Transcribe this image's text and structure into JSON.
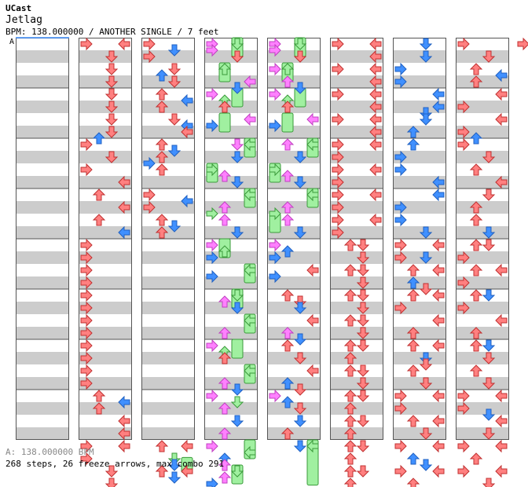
{
  "header": {
    "artist": "UCast",
    "title": "Jetlag",
    "info": "BPM: 138.000000 / ANOTHER SINGLE / 7 feet"
  },
  "section_marker": "A",
  "footer": {
    "bpm_line": "A: 138.000000 BPM",
    "stats_line": "268 steps, 26 freeze arrows, max combo 291"
  },
  "colors": {
    "quarter": "#ff8080",
    "eighth": "#4090ff",
    "sixteenth": "#ff80ff",
    "freeze": "#a0f0a0",
    "stripe": "#cccccc"
  },
  "notes": [
    [],
    [
      [
        0,
        0,
        "q"
      ],
      [
        0,
        3,
        "q"
      ],
      [
        1,
        2,
        "q"
      ],
      [
        2,
        2,
        "q"
      ],
      [
        3,
        2,
        "q"
      ],
      [
        4,
        2,
        "q"
      ],
      [
        5,
        2,
        "q"
      ],
      [
        6,
        2,
        "q"
      ],
      [
        7,
        2,
        "q"
      ],
      [
        7.5,
        1,
        "e"
      ],
      [
        8,
        0,
        "q"
      ],
      [
        9,
        2,
        "q"
      ],
      [
        10,
        0,
        "q"
      ],
      [
        11,
        3,
        "q"
      ],
      [
        12,
        1,
        "q"
      ],
      [
        13,
        3,
        "q"
      ],
      [
        14,
        1,
        "q"
      ],
      [
        15,
        3,
        "e"
      ],
      [
        16,
        0,
        "q"
      ],
      [
        17,
        0,
        "q"
      ],
      [
        18,
        0,
        "q"
      ],
      [
        19,
        0,
        "q"
      ],
      [
        20,
        0,
        "q"
      ],
      [
        21,
        0,
        "q"
      ],
      [
        22,
        0,
        "q"
      ],
      [
        23,
        0,
        "q"
      ],
      [
        24,
        0,
        "q"
      ],
      [
        25,
        0,
        "q"
      ],
      [
        26,
        0,
        "q"
      ],
      [
        27,
        0,
        "q"
      ],
      [
        28,
        1,
        "q"
      ],
      [
        28.5,
        3,
        "e"
      ],
      [
        29,
        1,
        "q"
      ],
      [
        30,
        3,
        "q"
      ],
      [
        31,
        3,
        "q"
      ],
      [
        32,
        0,
        "q"
      ],
      [
        32,
        3,
        "q"
      ],
      [
        33,
        0,
        "q"
      ],
      [
        34,
        2,
        "q"
      ],
      [
        35,
        2,
        "q"
      ]
    ],
    [
      [
        0,
        0,
        "q"
      ],
      [
        0.5,
        2,
        "e"
      ],
      [
        1,
        0,
        "q"
      ],
      [
        2,
        2,
        "q"
      ],
      [
        2.5,
        1,
        "e"
      ],
      [
        3,
        2,
        "q"
      ],
      [
        4,
        1,
        "q"
      ],
      [
        4.5,
        3,
        "e"
      ],
      [
        5,
        1,
        "q"
      ],
      [
        6,
        2,
        "q"
      ],
      [
        6.5,
        3,
        "e"
      ],
      [
        7,
        3,
        "q"
      ],
      [
        8,
        1,
        "q"
      ],
      [
        8.5,
        2,
        "e"
      ],
      [
        9,
        1,
        "q"
      ],
      [
        9.5,
        0,
        "e"
      ],
      [
        10,
        1,
        "q"
      ],
      [
        12,
        0,
        "q"
      ],
      [
        12.5,
        3,
        "e"
      ],
      [
        13,
        0,
        "q"
      ],
      [
        14,
        1,
        "q"
      ],
      [
        14.5,
        2,
        "e"
      ],
      [
        15,
        1,
        "q"
      ],
      [
        32,
        1,
        "q"
      ],
      [
        32,
        3,
        "q"
      ],
      [
        33,
        2,
        "f"
      ],
      [
        33.5,
        2,
        "e"
      ],
      [
        34,
        1,
        "q"
      ],
      [
        34,
        3,
        "q"
      ],
      [
        34.5,
        2,
        "e"
      ]
    ],
    [
      [
        0,
        0,
        "s"
      ],
      [
        0,
        2,
        "f"
      ],
      [
        0.5,
        0,
        "s"
      ],
      [
        1,
        2,
        "q"
      ],
      [
        2,
        1,
        "f"
      ],
      [
        3,
        3,
        "s"
      ],
      [
        3.5,
        2,
        "e"
      ],
      [
        4,
        0,
        "s"
      ],
      [
        4.5,
        1,
        "f"
      ],
      [
        5,
        1,
        "q"
      ],
      [
        6,
        3,
        "s"
      ],
      [
        6.5,
        0,
        "e"
      ],
      [
        8,
        2,
        "s"
      ],
      [
        8,
        3,
        "f"
      ],
      [
        9,
        2,
        "e"
      ],
      [
        10,
        0,
        "f"
      ],
      [
        10.5,
        1,
        "s"
      ],
      [
        11,
        2,
        "e"
      ],
      [
        12,
        3,
        "f"
      ],
      [
        13,
        1,
        "s"
      ],
      [
        13.5,
        0,
        "f"
      ],
      [
        14,
        1,
        "s"
      ],
      [
        15,
        2,
        "e"
      ],
      [
        16,
        0,
        "s"
      ],
      [
        16.5,
        1,
        "f"
      ],
      [
        17,
        0,
        "e"
      ],
      [
        18,
        3,
        "f"
      ],
      [
        18.5,
        0,
        "e"
      ],
      [
        20,
        2,
        "f"
      ],
      [
        20.5,
        1,
        "s"
      ],
      [
        21,
        2,
        "e"
      ],
      [
        22,
        3,
        "f"
      ],
      [
        23,
        1,
        "s"
      ],
      [
        24,
        0,
        "s"
      ],
      [
        24.5,
        1,
        "f"
      ],
      [
        25,
        1,
        "q"
      ],
      [
        26,
        3,
        "f"
      ],
      [
        27,
        1,
        "s"
      ],
      [
        27.5,
        2,
        "e"
      ],
      [
        28,
        0,
        "s"
      ],
      [
        28.5,
        2,
        "f"
      ],
      [
        29,
        1,
        "s"
      ],
      [
        30,
        2,
        "e"
      ],
      [
        31,
        1,
        "s"
      ],
      [
        32,
        0,
        "s"
      ],
      [
        32.5,
        3,
        "f"
      ],
      [
        33,
        1,
        "e"
      ],
      [
        33.5,
        1,
        "s"
      ],
      [
        34,
        2,
        "f"
      ],
      [
        34.5,
        1,
        "s"
      ],
      [
        35,
        0,
        "e"
      ]
    ],
    [
      [
        0,
        0,
        "s"
      ],
      [
        0,
        2,
        "f"
      ],
      [
        0.5,
        0,
        "s"
      ],
      [
        1,
        2,
        "q"
      ],
      [
        2,
        0,
        "s"
      ],
      [
        2,
        1,
        "f"
      ],
      [
        3,
        1,
        "s"
      ],
      [
        3.5,
        2,
        "e"
      ],
      [
        4,
        0,
        "s"
      ],
      [
        4.5,
        1,
        "f"
      ],
      [
        5,
        1,
        "q"
      ],
      [
        6,
        3,
        "s"
      ],
      [
        6.5,
        0,
        "e"
      ],
      [
        8,
        1,
        "s"
      ],
      [
        8,
        3,
        "f"
      ],
      [
        9,
        2,
        "e"
      ],
      [
        10,
        0,
        "f"
      ],
      [
        10.5,
        1,
        "s"
      ],
      [
        11,
        2,
        "e"
      ],
      [
        12,
        3,
        "f"
      ],
      [
        13,
        1,
        "s"
      ],
      [
        13.5,
        0,
        "f"
      ],
      [
        14,
        1,
        "s"
      ],
      [
        15,
        2,
        "e"
      ],
      [
        16,
        0,
        "s"
      ],
      [
        16.5,
        1,
        "e"
      ],
      [
        17,
        0,
        "e"
      ],
      [
        18,
        3,
        "q"
      ],
      [
        18.5,
        0,
        "e"
      ],
      [
        20,
        1,
        "q"
      ],
      [
        20.5,
        2,
        "q"
      ],
      [
        21,
        2,
        "e"
      ],
      [
        22,
        3,
        "q"
      ],
      [
        23,
        1,
        "s"
      ],
      [
        23.5,
        2,
        "e"
      ],
      [
        24,
        1,
        "q"
      ],
      [
        25,
        2,
        "q"
      ],
      [
        26,
        3,
        "q"
      ],
      [
        27,
        1,
        "e"
      ],
      [
        27.5,
        2,
        "q"
      ],
      [
        28,
        0,
        "s"
      ],
      [
        28.5,
        1,
        "e"
      ],
      [
        29,
        2,
        "q"
      ],
      [
        30,
        2,
        "e"
      ],
      [
        31,
        1,
        "q"
      ],
      [
        32,
        2,
        "e"
      ],
      [
        32,
        3,
        "f"
      ]
    ],
    [
      [
        0,
        0,
        "q"
      ],
      [
        0,
        3,
        "q"
      ],
      [
        1,
        3,
        "q"
      ],
      [
        2,
        0,
        "q"
      ],
      [
        2,
        3,
        "q"
      ],
      [
        3,
        3,
        "q"
      ],
      [
        4,
        0,
        "q"
      ],
      [
        4,
        3,
        "q"
      ],
      [
        5,
        3,
        "q"
      ],
      [
        6,
        0,
        "q"
      ],
      [
        6,
        3,
        "q"
      ],
      [
        7,
        3,
        "q"
      ],
      [
        8,
        0,
        "q"
      ],
      [
        8,
        3,
        "q"
      ],
      [
        9,
        0,
        "q"
      ],
      [
        10,
        0,
        "q"
      ],
      [
        10,
        3,
        "q"
      ],
      [
        11,
        0,
        "q"
      ],
      [
        12,
        0,
        "q"
      ],
      [
        12,
        3,
        "q"
      ],
      [
        13,
        0,
        "q"
      ],
      [
        14,
        0,
        "q"
      ],
      [
        14,
        3,
        "q"
      ],
      [
        15,
        0,
        "q"
      ],
      [
        16,
        1,
        "q"
      ],
      [
        16,
        2,
        "q"
      ],
      [
        17,
        2,
        "q"
      ],
      [
        18,
        1,
        "q"
      ],
      [
        18,
        2,
        "q"
      ],
      [
        19,
        2,
        "q"
      ],
      [
        20,
        1,
        "q"
      ],
      [
        20,
        2,
        "q"
      ],
      [
        21,
        2,
        "q"
      ],
      [
        22,
        1,
        "q"
      ],
      [
        22,
        2,
        "q"
      ],
      [
        23,
        2,
        "q"
      ],
      [
        24,
        1,
        "q"
      ],
      [
        24,
        2,
        "q"
      ],
      [
        25,
        1,
        "q"
      ],
      [
        26,
        1,
        "q"
      ],
      [
        26,
        2,
        "q"
      ],
      [
        27,
        2,
        "q"
      ],
      [
        28,
        1,
        "q"
      ],
      [
        28,
        2,
        "q"
      ],
      [
        29,
        1,
        "q"
      ],
      [
        30,
        1,
        "q"
      ],
      [
        30,
        2,
        "q"
      ],
      [
        31,
        1,
        "q"
      ],
      [
        32,
        1,
        "q"
      ],
      [
        32,
        2,
        "q"
      ],
      [
        33,
        1,
        "q"
      ],
      [
        34,
        1,
        "q"
      ],
      [
        34,
        2,
        "q"
      ],
      [
        35,
        1,
        "q"
      ]
    ],
    [
      [
        0,
        2,
        "e"
      ],
      [
        1,
        2,
        "e"
      ],
      [
        2,
        0,
        "e"
      ],
      [
        3,
        0,
        "e"
      ],
      [
        4,
        3,
        "e"
      ],
      [
        5,
        3,
        "e"
      ],
      [
        5.5,
        2,
        "e"
      ],
      [
        6,
        2,
        "e"
      ],
      [
        7,
        1,
        "e"
      ],
      [
        8,
        1,
        "e"
      ],
      [
        9,
        0,
        "e"
      ],
      [
        10,
        0,
        "e"
      ],
      [
        11,
        3,
        "e"
      ],
      [
        12,
        3,
        "e"
      ],
      [
        13,
        0,
        "e"
      ],
      [
        14,
        0,
        "e"
      ],
      [
        15,
        2,
        "e"
      ],
      [
        16,
        0,
        "q"
      ],
      [
        16,
        3,
        "q"
      ],
      [
        17,
        0,
        "q"
      ],
      [
        17,
        2,
        "e"
      ],
      [
        18,
        1,
        "q"
      ],
      [
        18,
        3,
        "q"
      ],
      [
        19,
        1,
        "e"
      ],
      [
        19.5,
        2,
        "q"
      ],
      [
        20,
        1,
        "q"
      ],
      [
        20,
        3,
        "q"
      ],
      [
        21,
        0,
        "q"
      ],
      [
        22,
        3,
        "q"
      ],
      [
        23,
        1,
        "q"
      ],
      [
        24,
        1,
        "q"
      ],
      [
        24,
        3,
        "q"
      ],
      [
        25,
        2,
        "e"
      ],
      [
        25.5,
        2,
        "q"
      ],
      [
        26,
        1,
        "q"
      ],
      [
        27,
        2,
        "q"
      ],
      [
        28,
        0,
        "q"
      ],
      [
        28,
        3,
        "q"
      ],
      [
        29,
        0,
        "q"
      ],
      [
        30,
        1,
        "q"
      ],
      [
        30,
        3,
        "q"
      ],
      [
        31,
        2,
        "q"
      ],
      [
        32,
        0,
        "q"
      ],
      [
        32,
        3,
        "q"
      ],
      [
        33,
        1,
        "e"
      ],
      [
        33.5,
        2,
        "e"
      ],
      [
        34,
        0,
        "q"
      ],
      [
        34,
        3,
        "q"
      ],
      [
        35,
        1,
        "q"
      ]
    ],
    [
      [
        0,
        0,
        "q"
      ],
      [
        0,
        4,
        "q"
      ],
      [
        1,
        2,
        "q"
      ],
      [
        2,
        1,
        "q"
      ],
      [
        2.5,
        3,
        "e"
      ],
      [
        3,
        1,
        "q"
      ],
      [
        4,
        3,
        "q"
      ],
      [
        5,
        0,
        "q"
      ],
      [
        6,
        3,
        "q"
      ],
      [
        7,
        0,
        "q"
      ],
      [
        7.5,
        1,
        "e"
      ],
      [
        8,
        0,
        "q"
      ],
      [
        9,
        2,
        "q"
      ],
      [
        10,
        1,
        "q"
      ],
      [
        11,
        3,
        "q"
      ],
      [
        12,
        2,
        "q"
      ],
      [
        13,
        1,
        "q"
      ],
      [
        14,
        1,
        "q"
      ],
      [
        15,
        2,
        "e"
      ],
      [
        16,
        1,
        "q"
      ],
      [
        16,
        2,
        "q"
      ],
      [
        17,
        0,
        "q"
      ],
      [
        18,
        1,
        "q"
      ],
      [
        18,
        3,
        "q"
      ],
      [
        19,
        0,
        "q"
      ],
      [
        20,
        1,
        "q"
      ],
      [
        20,
        2,
        "e"
      ],
      [
        21,
        0,
        "q"
      ],
      [
        22,
        3,
        "q"
      ],
      [
        23,
        1,
        "q"
      ],
      [
        24,
        1,
        "q"
      ],
      [
        24,
        2,
        "e"
      ],
      [
        25,
        2,
        "q"
      ],
      [
        26,
        1,
        "q"
      ],
      [
        27,
        2,
        "q"
      ],
      [
        28,
        0,
        "q"
      ],
      [
        28,
        3,
        "q"
      ],
      [
        29,
        0,
        "q"
      ],
      [
        29.5,
        2,
        "e"
      ],
      [
        30,
        3,
        "q"
      ],
      [
        31,
        2,
        "q"
      ],
      [
        32,
        0,
        "q"
      ],
      [
        32,
        3,
        "q"
      ],
      [
        33,
        1,
        "q"
      ],
      [
        34,
        0,
        "q"
      ],
      [
        34,
        3,
        "q"
      ],
      [
        35,
        2,
        "q"
      ]
    ]
  ],
  "freezes": [
    [],
    [],
    [
      [
        33.4,
        34.6,
        3
      ]
    ],
    [
      [
        0,
        1.5,
        2
      ],
      [
        2,
        3.5,
        1
      ],
      [
        4,
        5.5,
        2
      ],
      [
        6,
        7.5,
        1
      ],
      [
        8,
        9.5,
        3
      ],
      [
        10,
        11.5,
        0
      ],
      [
        12,
        13.5,
        3
      ],
      [
        16,
        17.5,
        1
      ],
      [
        18,
        19.5,
        3
      ],
      [
        20,
        21.5,
        2
      ],
      [
        22,
        23.5,
        3
      ],
      [
        24,
        25.5,
        2
      ],
      [
        26,
        27.5,
        3
      ],
      [
        32,
        33.5,
        3
      ],
      [
        34,
        35.5,
        2
      ]
    ],
    [
      [
        0,
        1.5,
        2
      ],
      [
        2,
        3.5,
        1
      ],
      [
        4,
        5.5,
        2
      ],
      [
        6,
        7.5,
        1
      ],
      [
        8,
        9.5,
        3
      ],
      [
        10,
        11.5,
        0
      ],
      [
        12,
        13.5,
        3
      ],
      [
        14,
        15.5,
        0
      ],
      [
        32,
        35.6,
        3
      ]
    ],
    [],
    [],
    []
  ]
}
